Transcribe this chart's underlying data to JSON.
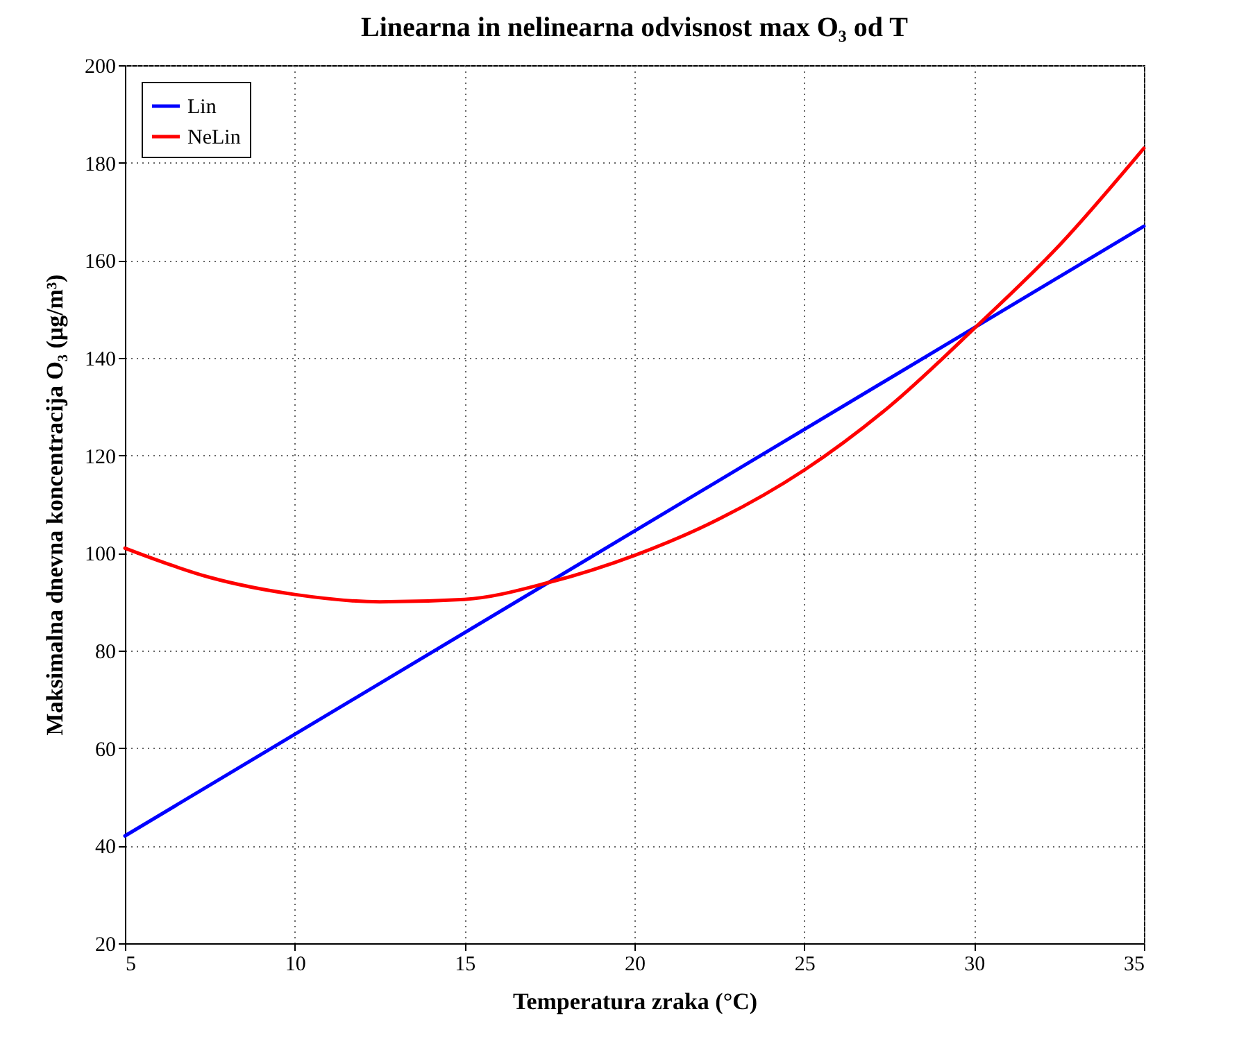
{
  "chart_data": {
    "type": "line",
    "title": "Linearna in nelinearna odvisnost max O₃ od T",
    "xlabel": "Temperatura zraka (°C)",
    "ylabel": "Maksimalna dnevna koncentracija O₃ (μg/m³)",
    "x": [
      5,
      7.5,
      10,
      12.5,
      15,
      17.5,
      20,
      22.5,
      25,
      27.5,
      30,
      32.5,
      35
    ],
    "series": [
      {
        "name": "Lin",
        "color": "#0000ff",
        "x": [
          5,
          35
        ],
        "values": [
          42,
          167
        ]
      },
      {
        "name": "NeLin",
        "color": "#ff0000",
        "values": [
          101,
          95,
          91.5,
          90,
          90.5,
          94,
          99.5,
          107,
          117,
          130,
          146,
          163,
          183
        ]
      }
    ],
    "xlim": [
      5,
      35
    ],
    "xticks": [
      5,
      10,
      15,
      20,
      25,
      30,
      35
    ],
    "ylim": [
      20,
      200
    ],
    "yticks": [
      20,
      40,
      60,
      80,
      100,
      120,
      140,
      160,
      180,
      200
    ],
    "grid": true,
    "legend": "top left",
    "line_style": "solid",
    "marker": "none"
  }
}
